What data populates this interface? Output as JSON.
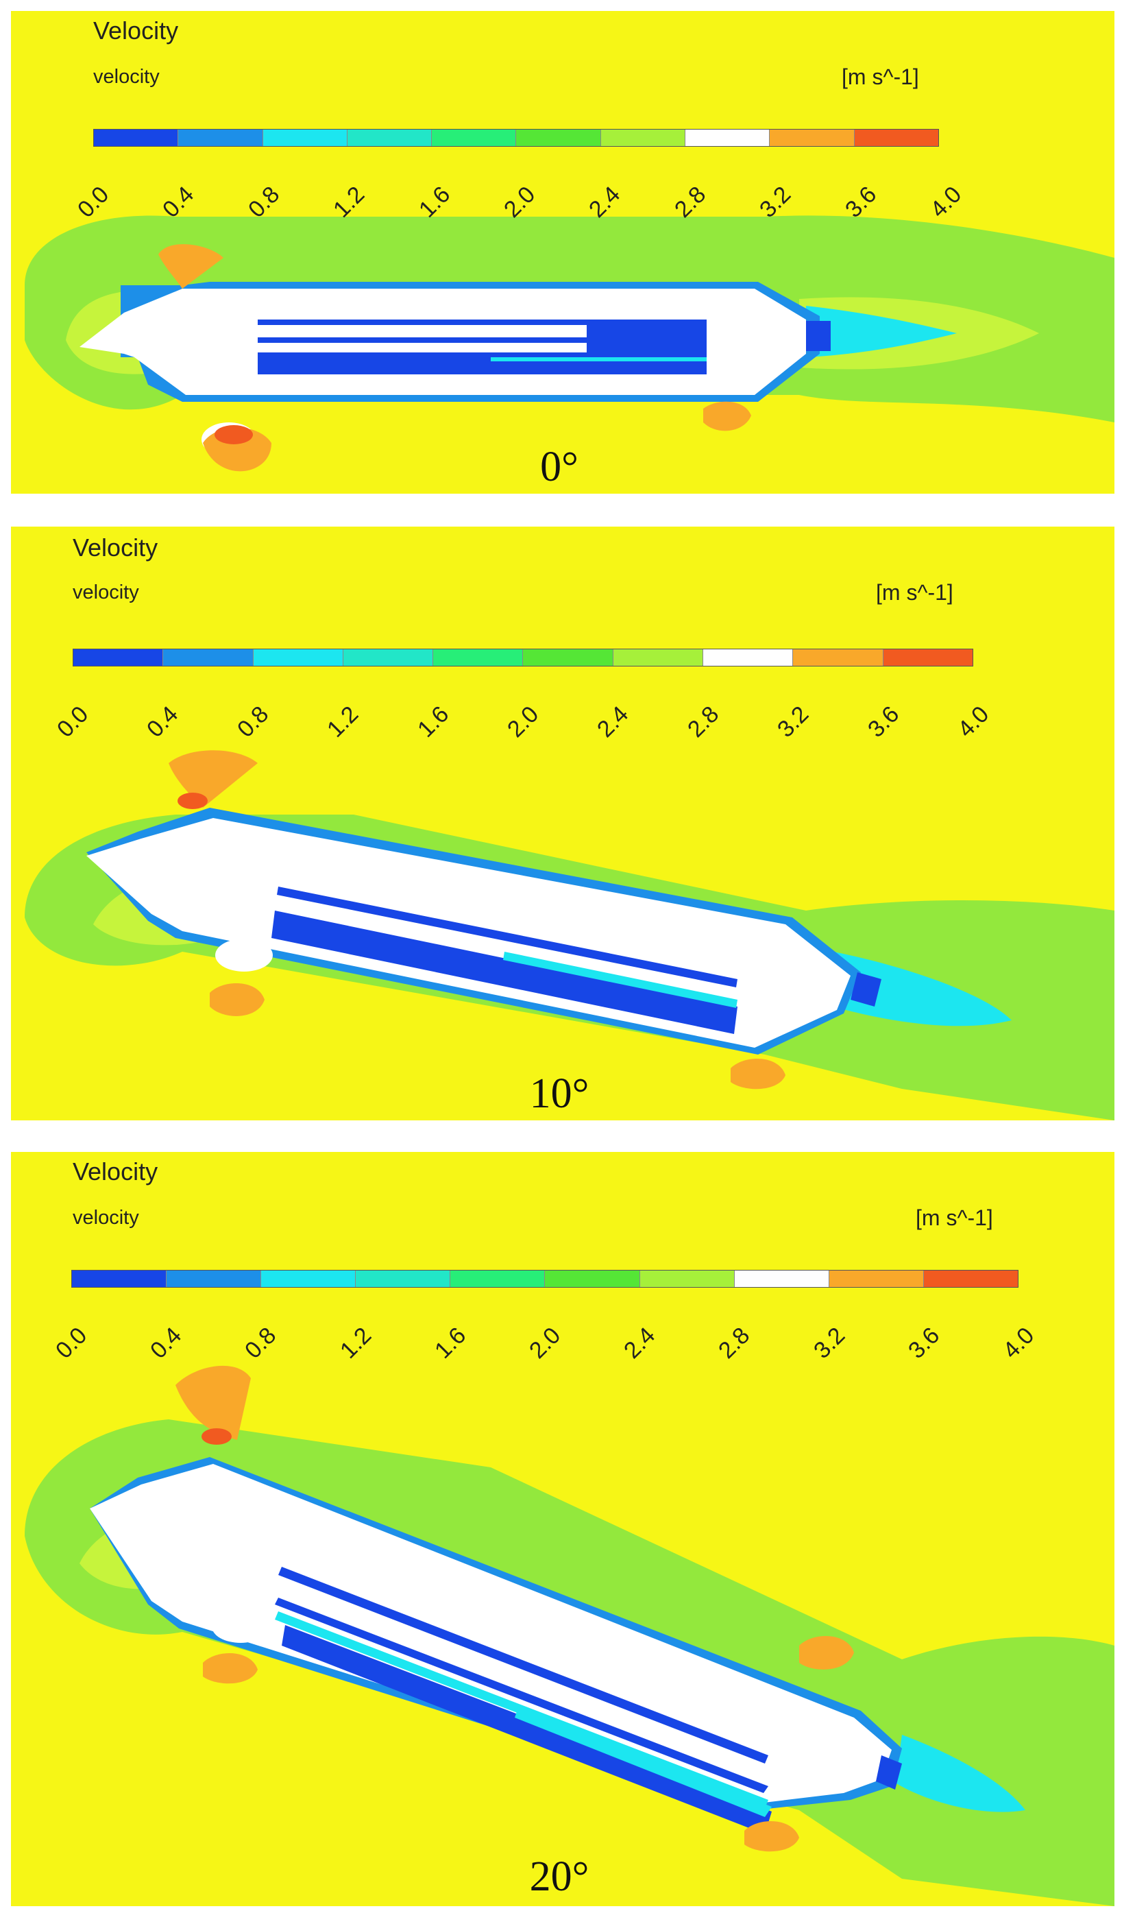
{
  "legend": {
    "title": "Velocity",
    "variable": "velocity",
    "units": "[m s^-1]",
    "ticks": [
      "0.0",
      "0.4",
      "0.8",
      "1.2",
      "1.6",
      "2.0",
      "2.4",
      "2.8",
      "3.2",
      "3.6",
      "4.0"
    ],
    "colors": [
      "#1746e6",
      "#1d8fe8",
      "#1ce6f0",
      "#22e6c8",
      "#27ee78",
      "#55e636",
      "#a6f03a",
      "#fefefe",
      "#f9a82a",
      "#f15a20"
    ]
  },
  "panels": [
    {
      "angle_label": "0°",
      "angle_deg": 0
    },
    {
      "angle_label": "10°",
      "angle_deg": 10
    },
    {
      "angle_label": "20°",
      "angle_deg": 20
    }
  ],
  "colors": {
    "background_field": "#f6f616",
    "wake_green": "#93e83d",
    "wake_light_green": "#c6f43c",
    "hull": "#ffffff",
    "low_velocity": "#1746e6",
    "mid_velocity": "#1d8fe8",
    "cyan_velocity": "#1ce6f0",
    "high_velocity": "#f9a82a",
    "peak_velocity": "#f15a20"
  }
}
